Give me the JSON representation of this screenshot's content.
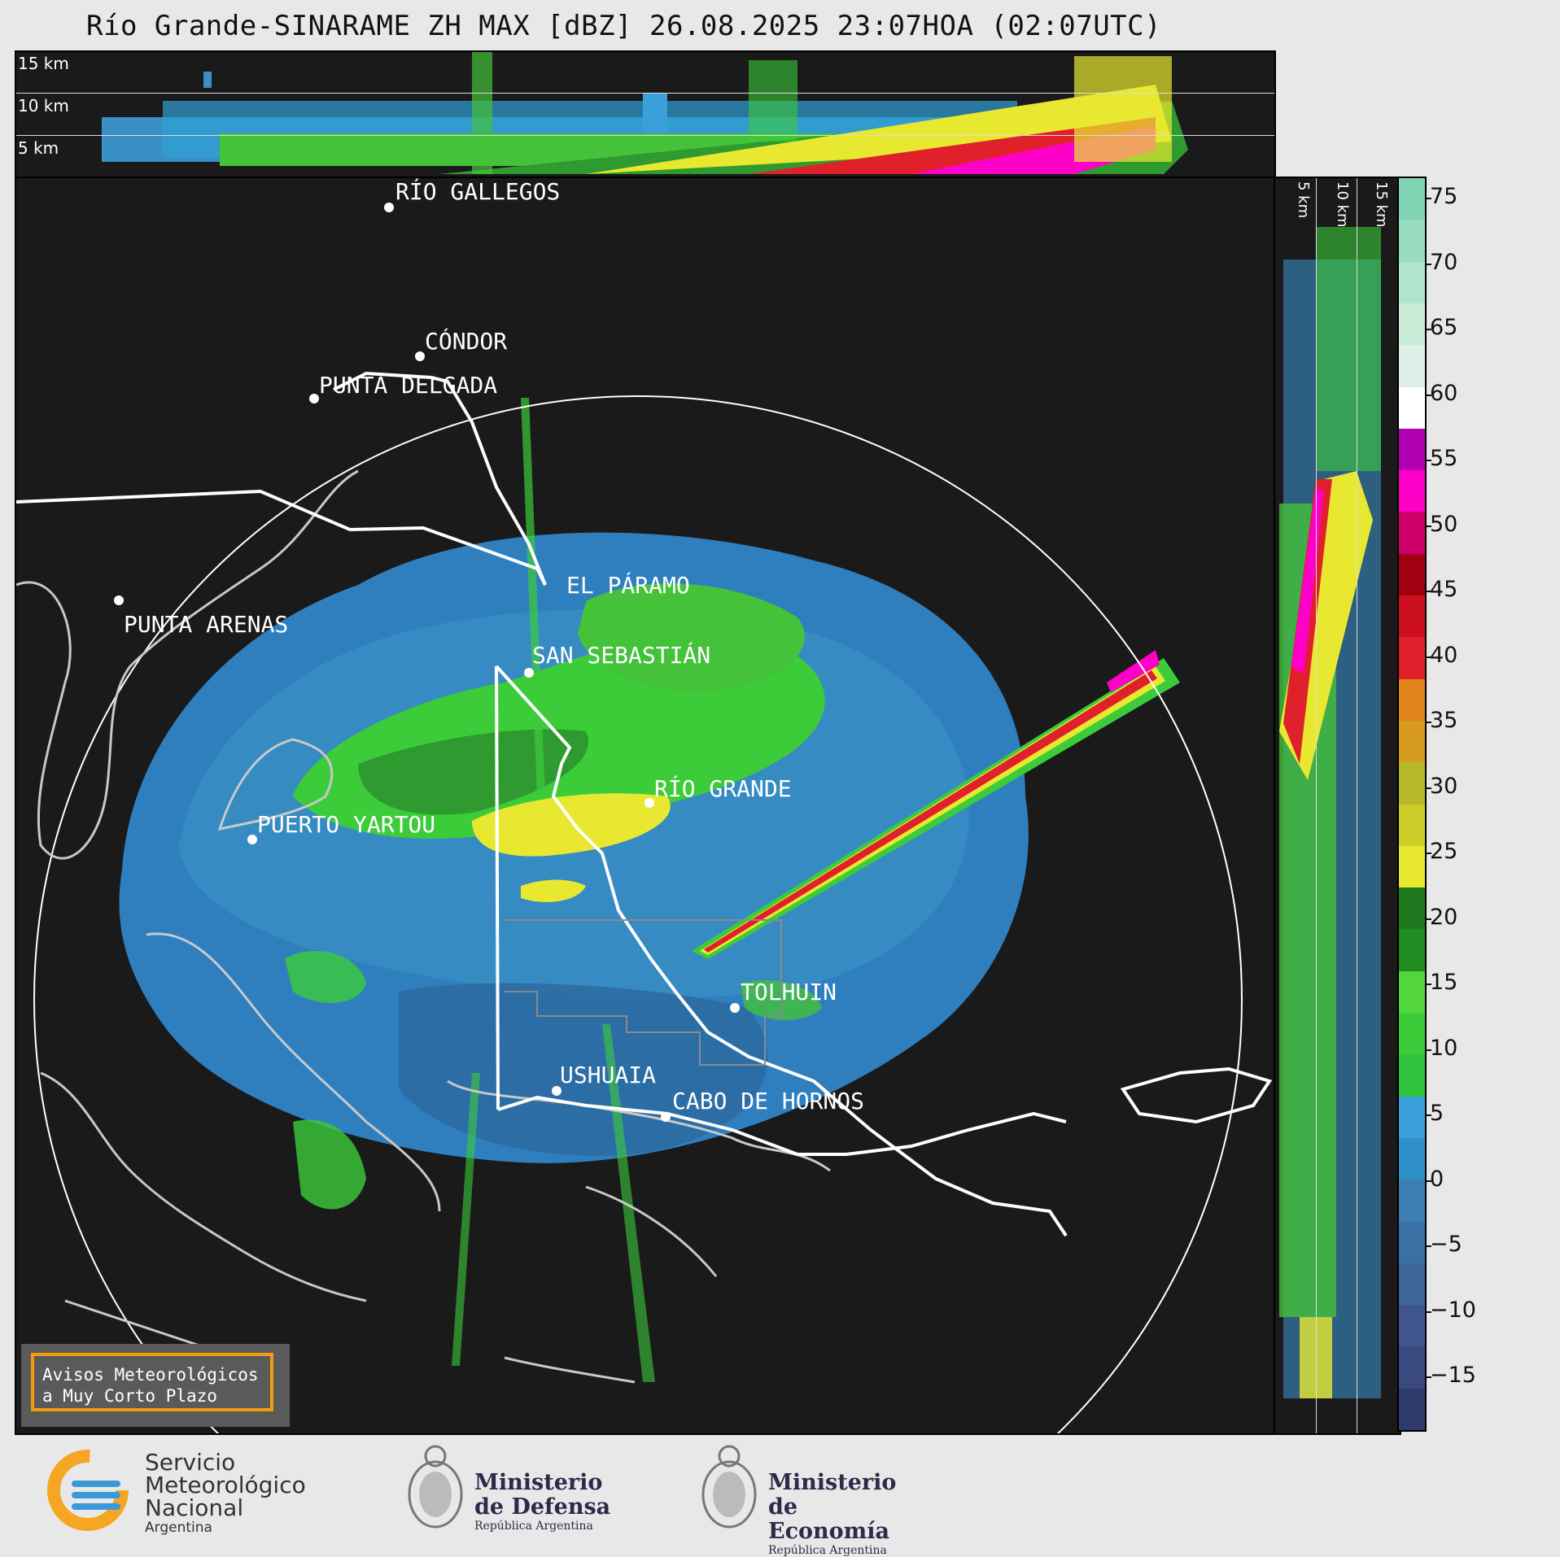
{
  "title": "Río Grande-SINARAME ZH MAX [dBZ] 26.08.2025 23:07HOA (02:07UTC)",
  "top_panel": {
    "labels": [
      "15 km",
      "10 km",
      "5 km"
    ]
  },
  "side_panel": {
    "labels": [
      "5 km",
      "10 km",
      "15 km"
    ]
  },
  "cities": [
    {
      "name": "RÍO GALLEGOS",
      "id": "rio-gallegos"
    },
    {
      "name": "CÓNDOR",
      "id": "condor"
    },
    {
      "name": "PUNTA DELGADA",
      "id": "punta-delgada"
    },
    {
      "name": "EL PÁRAMO",
      "id": "el-paramo"
    },
    {
      "name": "PUNTA ARENAS",
      "id": "punta-arenas"
    },
    {
      "name": "SAN SEBASTIÁN",
      "id": "san-sebastian"
    },
    {
      "name": "RÍO GRANDE",
      "id": "rio-grande"
    },
    {
      "name": "PUERTO YARTOU",
      "id": "puerto-yartou"
    },
    {
      "name": "TOLHUIN",
      "id": "tolhuin"
    },
    {
      "name": "USHUAIA",
      "id": "ushuaia"
    },
    {
      "name": "CABO DE HORNOS",
      "id": "cabo-de-hornos"
    }
  ],
  "colorbar": {
    "ticks": [
      "75",
      "70",
      "65",
      "60",
      "55",
      "50",
      "45",
      "40",
      "35",
      "30",
      "25",
      "20",
      "15",
      "10",
      "5",
      "0",
      "−5",
      "−10",
      "−15"
    ],
    "colors": [
      "#2e3a6b",
      "#3a4a80",
      "#40558c",
      "#3d6596",
      "#3b70a5",
      "#3d7fb2",
      "#2f8fc9",
      "#3aa0da",
      "#2fc23a",
      "#3ccc3a",
      "#52d63c",
      "#228b22",
      "#1f7a1f",
      "#e8e830",
      "#cdcd2a",
      "#b7b72a",
      "#d79b20",
      "#e2851a",
      "#e0202a",
      "#cc1020",
      "#a00010",
      "#d0006a",
      "#ff00c8",
      "#b000b0",
      "#ffffff",
      "#e0f0e8",
      "#c8ecd8",
      "#b0e4cc",
      "#98dcc0",
      "#80d4b4"
    ]
  },
  "avisos": {
    "line1": "Avisos Meteorológicos",
    "line2": "a Muy Corto Plazo"
  },
  "logos": {
    "smn": {
      "line1": "Servicio",
      "line2": "Meteorológico",
      "line3": "Nacional",
      "line4": "Argentina"
    },
    "defensa": {
      "line1": "Ministerio",
      "line2": "de Defensa",
      "sub": "República Argentina"
    },
    "economia": {
      "line1": "Ministerio",
      "line2": "de Economía",
      "sub": "República Argentina"
    }
  }
}
